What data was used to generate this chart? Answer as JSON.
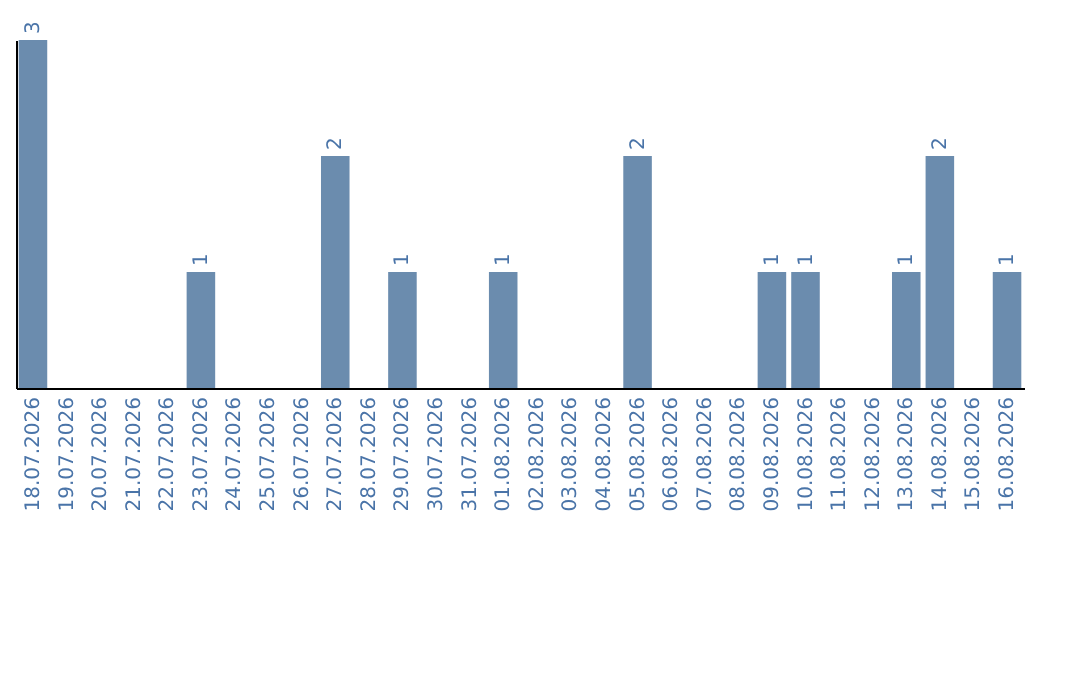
{
  "chart_data": {
    "type": "bar",
    "categories": [
      "18.07.2026",
      "19.07.2026",
      "20.07.2026",
      "21.07.2026",
      "22.07.2026",
      "23.07.2026",
      "24.07.2026",
      "25.07.2026",
      "26.07.2026",
      "27.07.2026",
      "28.07.2026",
      "29.07.2026",
      "30.07.2026",
      "31.07.2026",
      "01.08.2026",
      "02.08.2026",
      "03.08.2026",
      "04.08.2026",
      "05.08.2026",
      "06.08.2026",
      "07.08.2026",
      "08.08.2026",
      "09.08.2026",
      "10.08.2026",
      "11.08.2026",
      "12.08.2026",
      "13.08.2026",
      "14.08.2026",
      "15.08.2026",
      "16.08.2026"
    ],
    "values": [
      3,
      0,
      0,
      0,
      0,
      1,
      0,
      0,
      0,
      2,
      0,
      1,
      0,
      0,
      1,
      0,
      0,
      0,
      2,
      0,
      0,
      0,
      1,
      1,
      0,
      0,
      1,
      2,
      0,
      1
    ],
    "value_labels": [
      "3",
      null,
      null,
      null,
      null,
      "1",
      null,
      null,
      null,
      "2",
      null,
      "1",
      null,
      null,
      "1",
      null,
      null,
      null,
      "2",
      null,
      null,
      null,
      "1",
      "1",
      null,
      null,
      "1",
      "2",
      null,
      "1"
    ],
    "color": "#6b8cae",
    "tick_labels": "x",
    "grid": false
  }
}
